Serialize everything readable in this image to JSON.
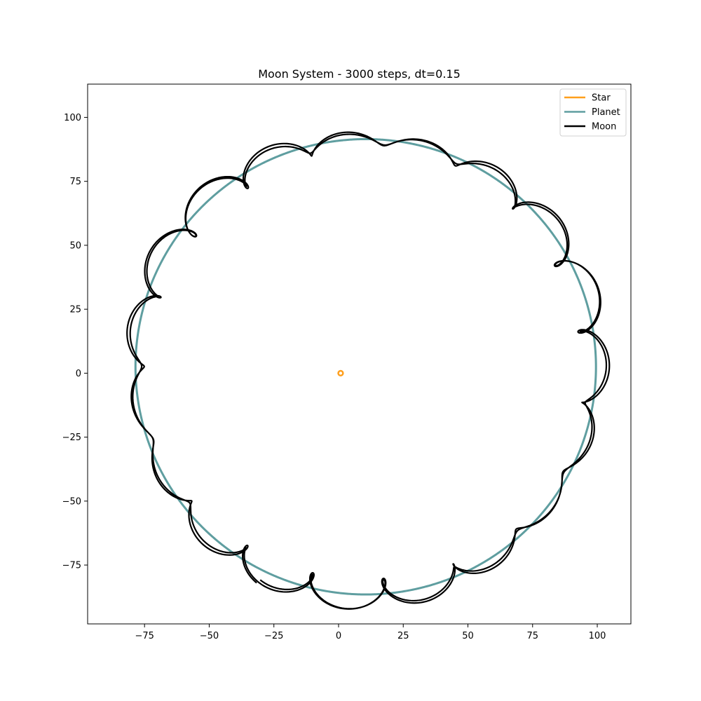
{
  "chart_data": {
    "type": "line",
    "title": "Moon System - 3000 steps, dt=0.15",
    "xlabel": "",
    "ylabel": "",
    "xlim": [
      -97,
      113
    ],
    "ylim": [
      -98,
      113
    ],
    "xticks": [
      -75,
      -50,
      -25,
      0,
      25,
      50,
      75,
      100
    ],
    "yticks": [
      -75,
      -50,
      -25,
      0,
      25,
      50,
      75,
      100
    ],
    "xtick_labels": [
      "−75",
      "−50",
      "−25",
      "0",
      "25",
      "50",
      "75",
      "100"
    ],
    "ytick_labels": [
      "−75",
      "−50",
      "−25",
      "0",
      "25",
      "50",
      "75",
      "100"
    ],
    "grid": false,
    "legend_position": "top-right",
    "series": [
      {
        "name": "Star",
        "color": "#ff9f1c",
        "kind": "ring",
        "center": [
          0.8,
          0
        ],
        "radius": 0.8
      },
      {
        "name": "Planet",
        "color": "#5f9ea0",
        "kind": "orbit",
        "center": [
          10.5,
          2.5
        ],
        "radius": 89,
        "start_angle_deg": -115,
        "end_angle_deg": 605
      },
      {
        "name": "Moon",
        "color": "#000000",
        "kind": "orbit-with-epicycles",
        "center": [
          10.5,
          2.5
        ],
        "radius": 89,
        "start_angle_deg": -115,
        "end_angle_deg": 605,
        "moon_radius": 5,
        "moon_angular_speed_ratio": 20,
        "end_point": [
          -34,
          -70
        ]
      }
    ]
  }
}
